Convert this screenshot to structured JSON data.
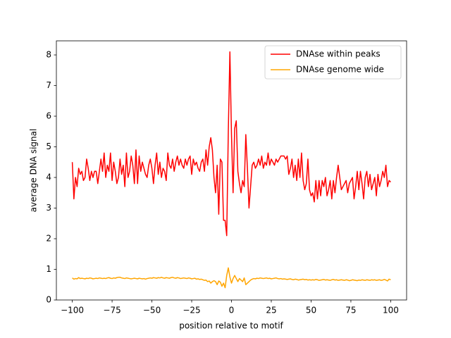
{
  "chart_data": {
    "type": "line",
    "xlabel": "position relative to motif",
    "ylabel": "average DNA signal",
    "x": [
      -100,
      -99,
      -98,
      -97,
      -96,
      -95,
      -94,
      -93,
      -92,
      -91,
      -90,
      -89,
      -88,
      -87,
      -86,
      -85,
      -84,
      -83,
      -82,
      -81,
      -80,
      -79,
      -78,
      -77,
      -76,
      -75,
      -74,
      -73,
      -72,
      -71,
      -70,
      -69,
      -68,
      -67,
      -66,
      -65,
      -64,
      -63,
      -62,
      -61,
      -60,
      -59,
      -58,
      -57,
      -56,
      -55,
      -54,
      -53,
      -52,
      -51,
      -50,
      -49,
      -48,
      -47,
      -46,
      -45,
      -44,
      -43,
      -42,
      -41,
      -40,
      -39,
      -38,
      -37,
      -36,
      -35,
      -34,
      -33,
      -32,
      -31,
      -30,
      -29,
      -28,
      -27,
      -26,
      -25,
      -24,
      -23,
      -22,
      -21,
      -20,
      -19,
      -18,
      -17,
      -16,
      -15,
      -14,
      -13,
      -12,
      -11,
      -10,
      -9,
      -8,
      -7,
      -6,
      -5,
      -4,
      -3,
      -2,
      -1,
      0,
      1,
      2,
      3,
      4,
      5,
      6,
      7,
      8,
      9,
      10,
      11,
      12,
      13,
      14,
      15,
      16,
      17,
      18,
      19,
      20,
      21,
      22,
      23,
      24,
      25,
      26,
      27,
      28,
      29,
      30,
      31,
      32,
      33,
      34,
      35,
      36,
      37,
      38,
      39,
      40,
      41,
      42,
      43,
      44,
      45,
      46,
      47,
      48,
      49,
      50,
      51,
      52,
      53,
      54,
      55,
      56,
      57,
      58,
      59,
      60,
      61,
      62,
      63,
      64,
      65,
      66,
      67,
      68,
      69,
      70,
      71,
      72,
      73,
      74,
      75,
      76,
      77,
      78,
      79,
      80,
      81,
      82,
      83,
      84,
      85,
      86,
      87,
      88,
      89,
      90,
      91,
      92,
      93,
      94,
      95,
      96,
      97,
      98,
      99,
      100
    ],
    "series": [
      {
        "name": "DNAse within peaks",
        "color": "#ff0000",
        "values": [
          4.5,
          3.3,
          4.0,
          3.7,
          4.3,
          4.1,
          4.2,
          3.9,
          4.0,
          4.6,
          4.3,
          3.9,
          4.2,
          4.0,
          4.2,
          4.2,
          3.8,
          4.2,
          4.6,
          4.2,
          4.8,
          4.0,
          4.4,
          4.2,
          4.8,
          3.9,
          4.5,
          4.2,
          3.8,
          4.0,
          4.6,
          4.1,
          4.4,
          3.7,
          4.8,
          4.0,
          4.2,
          4.7,
          4.4,
          3.8,
          4.9,
          3.8,
          4.7,
          4.2,
          4.5,
          4.3,
          4.1,
          4.0,
          4.4,
          4.6,
          4.3,
          3.8,
          4.4,
          4.8,
          4.1,
          4.5,
          4.0,
          4.3,
          4.2,
          3.9,
          4.8,
          4.4,
          4.3,
          4.6,
          4.2,
          4.5,
          4.7,
          4.4,
          4.6,
          4.4,
          4.3,
          4.6,
          4.4,
          4.6,
          4.7,
          4.1,
          4.6,
          4.4,
          4.5,
          4.3,
          4.2,
          4.5,
          4.6,
          4.2,
          4.9,
          4.4,
          5.0,
          5.3,
          4.9,
          4.0,
          3.5,
          4.4,
          2.8,
          4.6,
          4.5,
          2.6,
          2.6,
          2.1,
          5.5,
          8.1,
          5.4,
          3.5,
          5.6,
          5.85,
          4.2,
          3.8,
          3.5,
          3.9,
          3.7,
          5.4,
          4.3,
          3.0,
          3.7,
          4.4,
          4.5,
          4.3,
          4.4,
          4.6,
          4.4,
          4.7,
          4.3,
          4.5,
          4.4,
          4.8,
          4.4,
          4.6,
          4.5,
          4.4,
          4.6,
          4.5,
          4.6,
          4.7,
          4.7,
          4.7,
          4.6,
          4.7,
          4.1,
          4.3,
          4.6,
          4.0,
          4.4,
          3.9,
          4.6,
          4.0,
          4.8,
          3.9,
          3.6,
          3.8,
          4.6,
          3.6,
          3.4,
          3.5,
          3.2,
          3.9,
          3.3,
          3.9,
          3.4,
          3.9,
          3.7,
          4.0,
          3.4,
          3.6,
          3.9,
          3.3,
          3.9,
          3.5,
          4.0,
          4.4,
          4.0,
          3.6,
          3.7,
          3.8,
          3.9,
          3.5,
          3.8,
          3.9,
          4.0,
          3.3,
          3.7,
          4.2,
          3.6,
          4.2,
          3.8,
          3.3,
          4.0,
          4.2,
          3.7,
          4.1,
          3.6,
          3.8,
          4.0,
          3.4,
          4.1,
          3.7,
          3.9,
          4.2,
          4.0,
          4.4,
          3.7,
          3.9,
          3.85
        ]
      },
      {
        "name": "DNAse genome wide",
        "color": "#ffa500",
        "values": [
          0.72,
          0.68,
          0.7,
          0.69,
          0.73,
          0.7,
          0.71,
          0.7,
          0.69,
          0.71,
          0.7,
          0.72,
          0.71,
          0.69,
          0.7,
          0.71,
          0.7,
          0.72,
          0.71,
          0.7,
          0.71,
          0.7,
          0.72,
          0.73,
          0.71,
          0.7,
          0.72,
          0.71,
          0.73,
          0.74,
          0.74,
          0.72,
          0.71,
          0.7,
          0.72,
          0.71,
          0.7,
          0.69,
          0.7,
          0.71,
          0.7,
          0.69,
          0.71,
          0.7,
          0.69,
          0.7,
          0.68,
          0.7,
          0.71,
          0.72,
          0.71,
          0.73,
          0.72,
          0.71,
          0.73,
          0.72,
          0.74,
          0.72,
          0.71,
          0.73,
          0.72,
          0.71,
          0.73,
          0.74,
          0.72,
          0.71,
          0.73,
          0.72,
          0.7,
          0.71,
          0.72,
          0.71,
          0.7,
          0.72,
          0.71,
          0.69,
          0.7,
          0.71,
          0.68,
          0.69,
          0.67,
          0.68,
          0.66,
          0.64,
          0.65,
          0.6,
          0.62,
          0.55,
          0.6,
          0.63,
          0.6,
          0.5,
          0.62,
          0.58,
          0.45,
          0.55,
          0.4,
          0.8,
          1.05,
          0.75,
          0.55,
          0.7,
          0.8,
          0.7,
          0.6,
          0.7,
          0.65,
          0.6,
          0.72,
          0.5,
          0.55,
          0.6,
          0.65,
          0.68,
          0.7,
          0.69,
          0.71,
          0.7,
          0.72,
          0.71,
          0.7,
          0.71,
          0.72,
          0.7,
          0.71,
          0.69,
          0.7,
          0.71,
          0.72,
          0.7,
          0.69,
          0.7,
          0.68,
          0.69,
          0.68,
          0.67,
          0.68,
          0.69,
          0.67,
          0.66,
          0.68,
          0.67,
          0.65,
          0.66,
          0.67,
          0.68,
          0.66,
          0.67,
          0.65,
          0.66,
          0.65,
          0.66,
          0.65,
          0.67,
          0.66,
          0.64,
          0.65,
          0.66,
          0.67,
          0.65,
          0.66,
          0.65,
          0.64,
          0.66,
          0.67,
          0.65,
          0.66,
          0.64,
          0.65,
          0.66,
          0.65,
          0.64,
          0.66,
          0.65,
          0.63,
          0.64,
          0.66,
          0.65,
          0.64,
          0.63,
          0.65,
          0.64,
          0.66,
          0.65,
          0.64,
          0.66,
          0.65,
          0.64,
          0.66,
          0.65,
          0.66,
          0.64,
          0.65,
          0.66,
          0.64,
          0.65,
          0.67,
          0.65,
          0.62,
          0.68,
          0.66
        ]
      }
    ],
    "xlim": [
      -110,
      110
    ],
    "ylim": [
      0,
      8.46
    ],
    "xticks": [
      {
        "value": -100,
        "label": "−100"
      },
      {
        "value": -75,
        "label": "−75"
      },
      {
        "value": -50,
        "label": "−50"
      },
      {
        "value": -25,
        "label": "−25"
      },
      0,
      25,
      50,
      75,
      100
    ],
    "yticks": [
      0,
      1,
      2,
      3,
      4,
      5,
      6,
      7,
      8
    ],
    "legend": "upper right"
  }
}
